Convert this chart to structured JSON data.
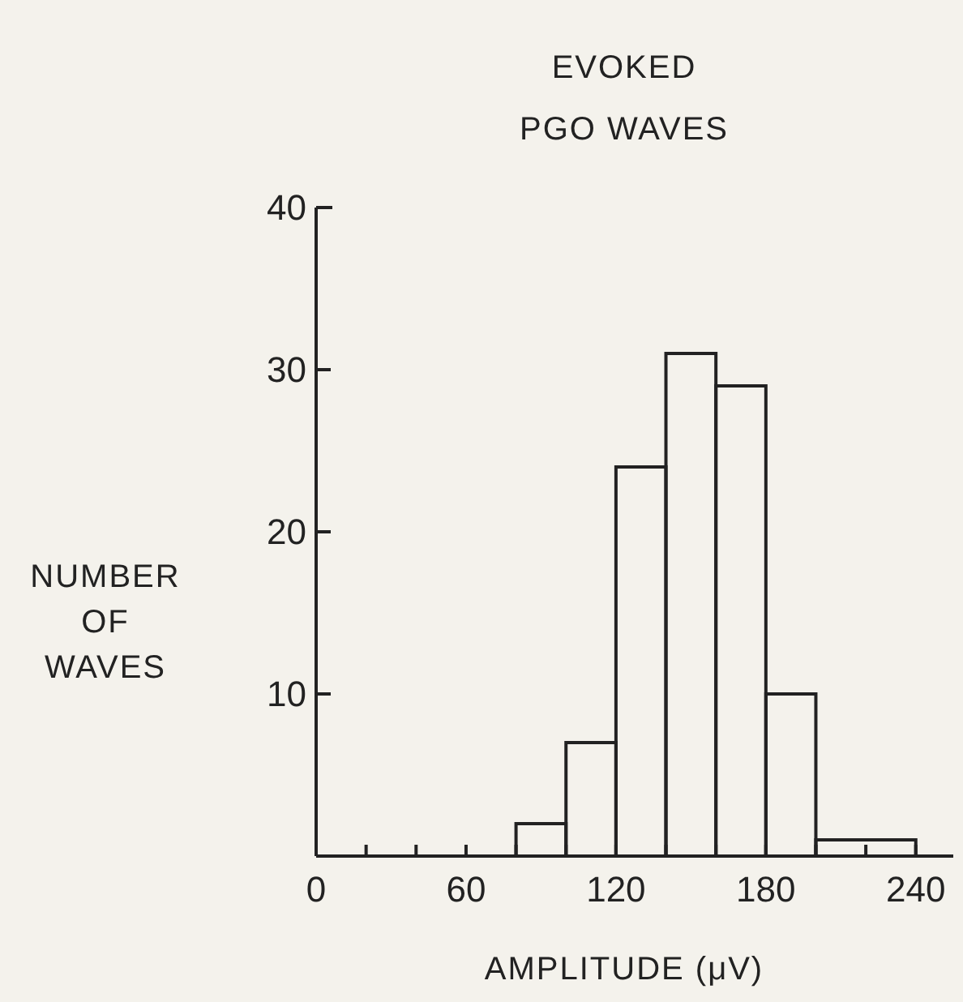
{
  "chart_data": {
    "type": "histogram",
    "title": "EVOKED\nPGO WAVES",
    "xlabel": "AMPLITUDE (μV)",
    "ylabel": "NUMBER\nOF\nWAVES",
    "bins": [
      80,
      100,
      120,
      140,
      160,
      180,
      200,
      240
    ],
    "values": [
      2,
      7,
      24,
      31,
      29,
      10,
      1
    ],
    "color": "#222222",
    "xlim": [
      0,
      255
    ],
    "ylim": [
      0,
      40
    ],
    "xticks": [
      0,
      {
        "value": 20,
        "label": null
      },
      {
        "value": 40,
        "label": null
      },
      60,
      {
        "value": 80,
        "label": null
      },
      {
        "value": 100,
        "label": null
      },
      120,
      {
        "value": 140,
        "label": null
      },
      {
        "value": 160,
        "label": null
      },
      180,
      {
        "value": 200,
        "label": null
      },
      {
        "value": 220,
        "label": null
      },
      240
    ],
    "yticks": [
      10,
      20,
      30,
      40
    ],
    "grid": false
  }
}
